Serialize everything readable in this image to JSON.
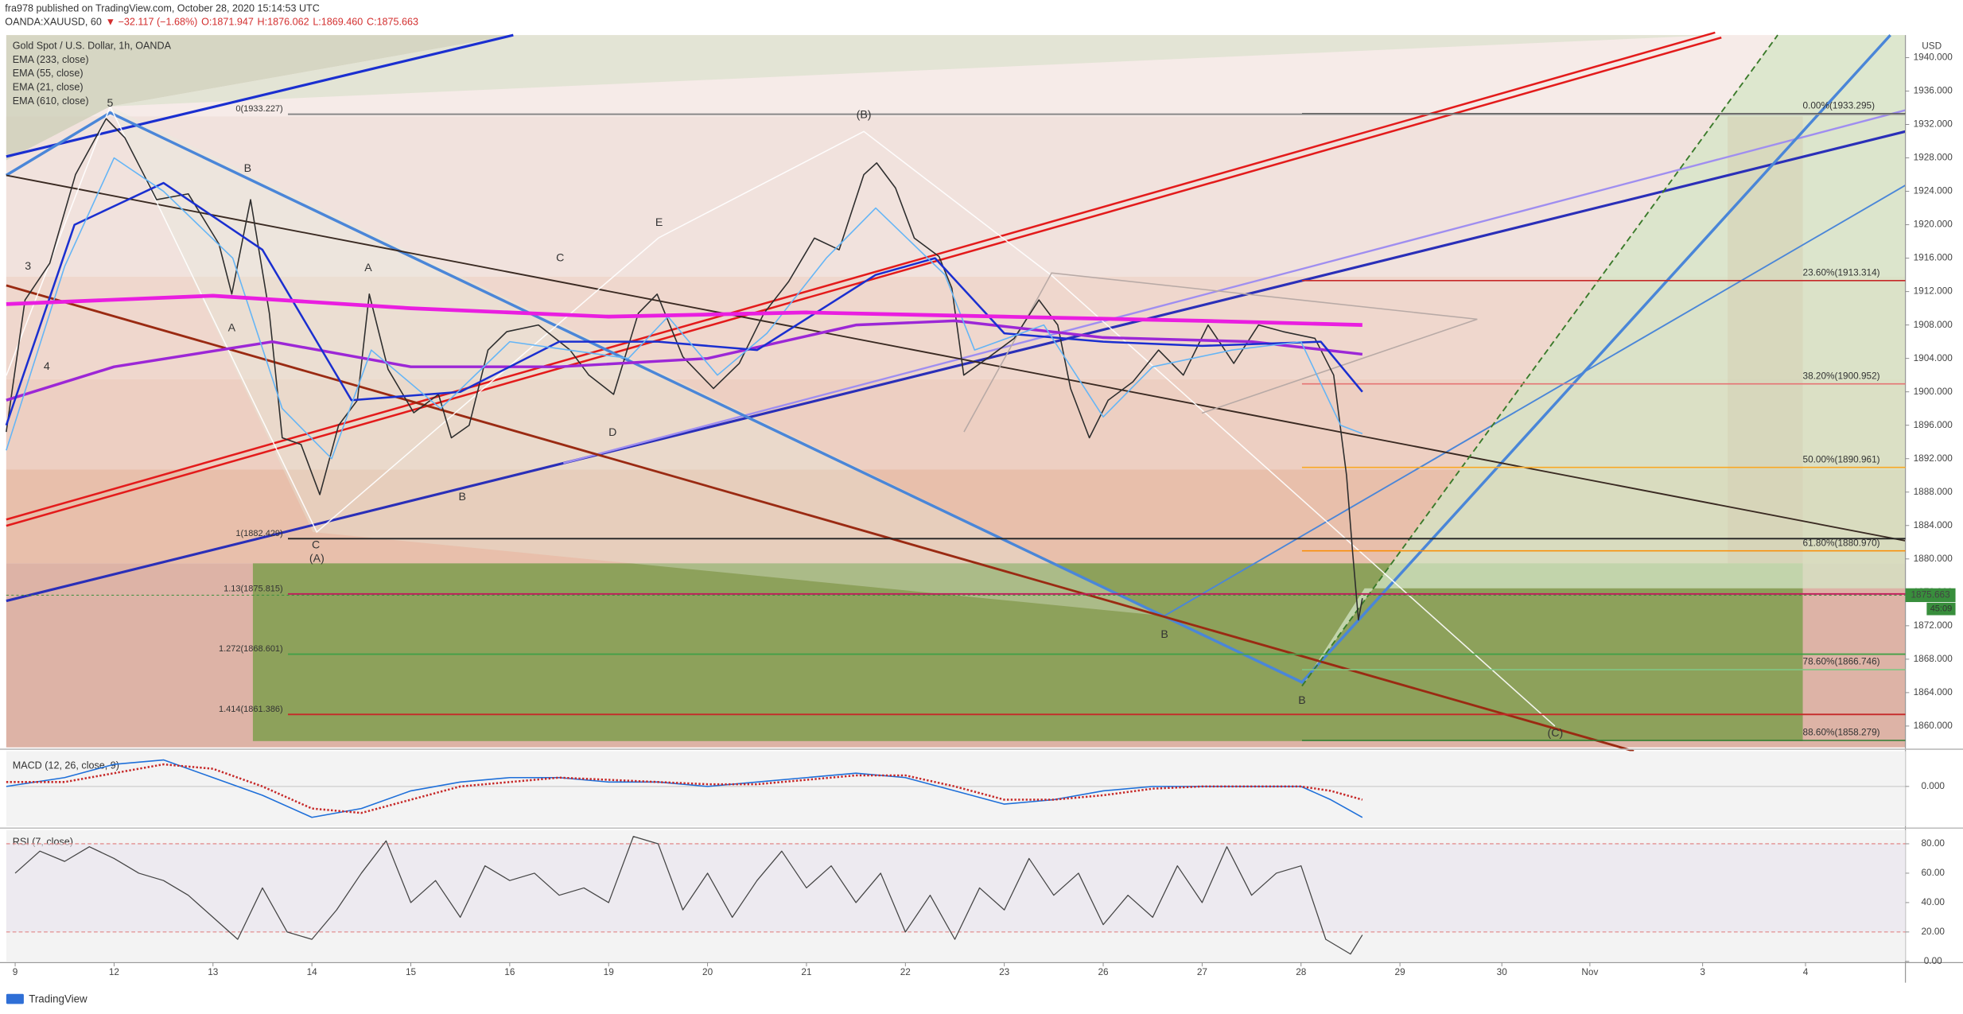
{
  "header": {
    "publisher": "fra978 published on TradingView.com, October 28, 2020 15:14:53 UTC",
    "symbol": "OANDA:XAUUSD, 60",
    "change": "▼ −32.117 (−1.68%)",
    "open": "O:1871.947",
    "high": "H:1876.062",
    "low": "L:1869.460",
    "close": "C:1875.663"
  },
  "footer": {
    "brand": "TradingView"
  },
  "chart_data": [
    {
      "type": "line",
      "title": "Gold Spot / U.S. Dollar, 1h, OANDA",
      "currency": "USD",
      "last_price": 1875.663,
      "last_price_color": "#388e3c",
      "countdown": "45:09",
      "xlim": [
        -0.09,
        19.11
      ],
      "ylim": [
        1857.45,
        1942.7
      ],
      "xticks": [
        {
          "value": 0,
          "label": "9"
        },
        {
          "value": 1,
          "label": "12"
        },
        {
          "value": 2,
          "label": "13"
        },
        {
          "value": 3,
          "label": "14"
        },
        {
          "value": 4,
          "label": "15"
        },
        {
          "value": 5,
          "label": "16"
        },
        {
          "value": 6,
          "label": "19"
        },
        {
          "value": 7,
          "label": "20"
        },
        {
          "value": 8,
          "label": "21"
        },
        {
          "value": 9,
          "label": "22"
        },
        {
          "value": 10,
          "label": "23"
        },
        {
          "value": 11,
          "label": "26"
        },
        {
          "value": 12,
          "label": "27"
        },
        {
          "value": 13,
          "label": "28"
        },
        {
          "value": 14,
          "label": "29"
        },
        {
          "value": 15.03,
          "label": "30"
        },
        {
          "value": 15.92,
          "label": "Nov"
        },
        {
          "value": 17.06,
          "label": "3"
        },
        {
          "value": 18.1,
          "label": "4"
        }
      ],
      "yticks": [
        {
          "value": 1860,
          "label": "1860.000"
        },
        {
          "value": 1864,
          "label": "1864.000"
        },
        {
          "value": 1868,
          "label": "1868.000"
        },
        {
          "value": 1872,
          "label": "1872.000"
        },
        {
          "value": 1876,
          "label": "1876.000"
        },
        {
          "value": 1880,
          "label": "1880.000"
        },
        {
          "value": 1884,
          "label": "1884.000"
        },
        {
          "value": 1888,
          "label": "1888.000"
        },
        {
          "value": 1892,
          "label": "1892.000"
        },
        {
          "value": 1896,
          "label": "1896.000"
        },
        {
          "value": 1900,
          "label": "1900.000"
        },
        {
          "value": 1904,
          "label": "1904.000"
        },
        {
          "value": 1908,
          "label": "1908.000"
        },
        {
          "value": 1912,
          "label": "1912.000"
        },
        {
          "value": 1916,
          "label": "1916.000"
        },
        {
          "value": 1920,
          "label": "1920.000"
        },
        {
          "value": 1924,
          "label": "1924.000"
        },
        {
          "value": 1928,
          "label": "1928.000"
        },
        {
          "value": 1932,
          "label": "1932.000"
        },
        {
          "value": 1936,
          "label": "1936.000"
        },
        {
          "value": 1940,
          "label": "1940.000"
        }
      ],
      "fib_retracement": [
        {
          "value": 1933.295,
          "label": "0.00%(1933.295)",
          "color": "#222222"
        },
        {
          "value": 1913.314,
          "label": "23.60%(1913.314)",
          "color": "#c62828"
        },
        {
          "value": 1900.952,
          "label": "38.20%(1900.952)",
          "color": "#e57373"
        },
        {
          "value": 1890.961,
          "label": "50.00%(1890.961)",
          "color": "#f9a825"
        },
        {
          "value": 1880.97,
          "label": "61.80%(1880.970)",
          "color": "#fb8c00"
        },
        {
          "value": 1866.746,
          "label": "78.60%(1866.746)",
          "color": "#81c784"
        },
        {
          "value": 1858.279,
          "label": "88.60%(1858.279)",
          "color": "#2e7d32"
        }
      ],
      "fib_extension": [
        {
          "value": 1933.227,
          "label": "0(1933.227)",
          "color": "#888888"
        },
        {
          "value": 1882.429,
          "label": "1(1882.429)",
          "color": "#222222"
        },
        {
          "value": 1875.815,
          "label": "1.13(1875.815)",
          "color": "#c2185b"
        },
        {
          "value": 1868.601,
          "label": "1.272(1868.601)",
          "color": "#43a047"
        },
        {
          "value": 1861.386,
          "label": "1.414(1861.386)",
          "color": "#c62828"
        }
      ],
      "annotations": [
        {
          "text": "3",
          "x": 0.13,
          "y": 1915.0
        },
        {
          "text": "4",
          "x": 0.32,
          "y": 1903.0
        },
        {
          "text": "5",
          "x": 0.96,
          "y": 1934.5
        },
        {
          "text": "B",
          "x": 2.35,
          "y": 1926.7
        },
        {
          "text": "A",
          "x": 2.19,
          "y": 1907.6
        },
        {
          "text": "C",
          "x": 3.04,
          "y": 1881.6
        },
        {
          "text": "(A)",
          "x": 3.05,
          "y": 1880.0
        },
        {
          "text": "A",
          "x": 3.57,
          "y": 1914.8
        },
        {
          "text": "B",
          "x": 4.52,
          "y": 1887.4
        },
        {
          "text": "C",
          "x": 5.51,
          "y": 1916.0
        },
        {
          "text": "E",
          "x": 6.51,
          "y": 1920.2
        },
        {
          "text": "D",
          "x": 6.04,
          "y": 1895.1
        },
        {
          "text": "(B)",
          "x": 8.58,
          "y": 1933.1
        },
        {
          "text": "B",
          "x": 11.62,
          "y": 1870.9
        },
        {
          "text": "B",
          "x": 13.01,
          "y": 1863.0
        },
        {
          "text": "(C)",
          "x": 15.57,
          "y": 1859.1
        }
      ],
      "series": [
        {
          "color": "#2d2d2d",
          "width": 1,
          "x": [
            -0.09,
            0.1,
            0.35,
            0.61,
            0.92,
            1.11,
            1.43,
            1.75,
            2.06,
            2.19,
            2.38,
            2.57,
            2.7,
            2.89,
            3.08,
            3.27,
            3.46,
            3.58,
            3.77,
            4.03,
            4.28,
            4.41,
            4.59,
            4.78,
            4.97,
            5.29,
            5.61,
            5.8,
            6.05,
            6.3,
            6.49,
            6.75,
            7.06,
            7.32,
            7.57,
            7.82,
            8.08,
            8.33,
            8.58,
            8.71,
            8.9,
            9.09,
            9.34,
            9.47,
            9.59,
            9.85,
            10.1,
            10.35,
            10.54,
            10.67,
            10.86,
            11.05,
            11.3,
            11.56,
            11.81,
            12.06,
            12.32,
            12.57,
            12.82,
            13.14,
            13.33,
            13.46,
            13.52,
            13.58,
            13.62
          ],
          "values": [
            1895.2,
            1911,
            1915.4,
            1926,
            1932.7,
            1930.4,
            1923,
            1923.7,
            1917.7,
            1911.7,
            1923,
            1909.4,
            1894.5,
            1893.7,
            1887.7,
            1896,
            1899,
            1911.7,
            1902.7,
            1897.5,
            1899.7,
            1894.5,
            1896,
            1905,
            1907.2,
            1908,
            1905,
            1902,
            1899.7,
            1909.4,
            1911.7,
            1904.2,
            1900.4,
            1903.4,
            1909.4,
            1913.2,
            1918.4,
            1917,
            1926,
            1927.4,
            1924.4,
            1918.4,
            1916.2,
            1912.4,
            1902,
            1904.2,
            1906.4,
            1911,
            1908,
            1900.4,
            1894.5,
            1899,
            1901.2,
            1905,
            1902,
            1908,
            1903.4,
            1908,
            1907.2,
            1906.4,
            1902,
            1890,
            1881,
            1872.7,
            1875.3
          ]
        },
        {
          "name": "EMA (233, close)",
          "color": "#9c27d6",
          "width": 2.2,
          "x": [
            -0.09,
            1,
            2.6,
            4,
            5.5,
            7,
            8.5,
            9.5,
            11,
            12.5,
            13.62
          ],
          "values": [
            1899,
            1903,
            1906,
            1903,
            1903,
            1904,
            1908,
            1908.5,
            1906.5,
            1906,
            1904.5
          ]
        },
        {
          "name": "EMA (55, close)",
          "color": "#1a2fd0",
          "width": 1.6,
          "x": [
            -0.09,
            0.6,
            1.5,
            2.5,
            3.4,
            4.5,
            5.5,
            6.5,
            7.5,
            8.7,
            9.3,
            10,
            11,
            12,
            13.2,
            13.62
          ],
          "values": [
            1896,
            1920,
            1925,
            1917,
            1899,
            1900,
            1906,
            1906,
            1905,
            1914,
            1916,
            1907,
            1906,
            1905.5,
            1906,
            1900
          ]
        },
        {
          "name": "EMA (21, close)",
          "color": "#64b5f6",
          "width": 1,
          "x": [
            -0.09,
            0.5,
            1,
            1.5,
            2.2,
            2.7,
            3.2,
            3.6,
            4.3,
            5,
            5.6,
            6.2,
            6.6,
            7.1,
            7.6,
            8.2,
            8.7,
            9.4,
            9.7,
            10.4,
            11,
            11.5,
            12.3,
            13,
            13.4,
            13.62
          ],
          "values": [
            1893,
            1915,
            1928,
            1924,
            1916,
            1898,
            1892,
            1905,
            1898,
            1906,
            1905,
            1904,
            1909,
            1902,
            1907,
            1916,
            1922,
            1914,
            1905,
            1908,
            1897,
            1903,
            1905,
            1906,
            1896,
            1895
          ]
        },
        {
          "name": "EMA (610, close)",
          "color": "#e91ee0",
          "width": 3,
          "x": [
            -0.09,
            2,
            4,
            6,
            8,
            10,
            12,
            13.62
          ],
          "values": [
            1910.5,
            1911.5,
            1910,
            1909,
            1909.5,
            1909,
            1908.5,
            1908
          ]
        }
      ]
    },
    {
      "type": "line",
      "title": "MACD (12, 26, close, 9)",
      "xlim": [
        -0.09,
        19.11
      ],
      "ylim": [
        -9,
        8
      ],
      "yticks": [
        {
          "value": 0,
          "label": "0.000"
        }
      ],
      "series": [
        {
          "color": "#1e6fd9",
          "width": 1,
          "x": [
            -0.09,
            0.5,
            1,
            1.5,
            2,
            2.5,
            3,
            3.5,
            4,
            4.5,
            5,
            5.5,
            6,
            6.5,
            7,
            7.5,
            8,
            8.5,
            9,
            9.5,
            10,
            10.5,
            11,
            11.5,
            12,
            12.5,
            13,
            13.3,
            13.62
          ],
          "values": [
            0,
            2,
            5,
            6,
            2,
            -2,
            -7,
            -5,
            -1,
            1,
            2,
            2,
            1,
            1,
            0,
            1,
            2,
            3,
            2,
            -1,
            -4,
            -3,
            -1,
            0,
            0,
            0,
            0,
            -3,
            -7
          ]
        },
        {
          "color": "#c62828",
          "width": 1.6,
          "dotted": true,
          "x": [
            -0.09,
            0.5,
            1,
            1.5,
            2,
            2.5,
            3,
            3.5,
            4,
            4.5,
            5,
            5.5,
            6,
            6.5,
            7,
            7.5,
            8,
            8.5,
            9,
            9.5,
            10,
            10.5,
            11,
            11.5,
            12,
            12.5,
            13,
            13.3,
            13.62
          ],
          "values": [
            1,
            1,
            3,
            5,
            4,
            0,
            -5,
            -6,
            -3,
            0,
            1,
            2,
            1.5,
            1,
            0.5,
            0.5,
            1.5,
            2.5,
            2.5,
            0,
            -3,
            -3,
            -2,
            -0.5,
            0,
            0,
            0,
            -1,
            -3
          ]
        }
      ]
    },
    {
      "type": "line",
      "title": "RSI (7, close)",
      "xlim": [
        -0.09,
        19.11
      ],
      "ylim": [
        0,
        89.4
      ],
      "band": [
        20,
        80
      ],
      "yticks": [
        {
          "value": 0,
          "label": "0.00"
        },
        {
          "value": 20,
          "label": "20.00"
        },
        {
          "value": 40,
          "label": "40.00"
        },
        {
          "value": 60,
          "label": "60.00"
        },
        {
          "value": 80,
          "label": "80.00"
        }
      ],
      "series": [
        {
          "color": "#444444",
          "width": 0.8,
          "x": [
            0,
            0.25,
            0.5,
            0.75,
            1,
            1.25,
            1.5,
            1.75,
            2,
            2.25,
            2.5,
            2.75,
            3,
            3.25,
            3.5,
            3.75,
            4,
            4.25,
            4.5,
            4.75,
            5,
            5.25,
            5.5,
            5.75,
            6,
            6.25,
            6.5,
            6.75,
            7,
            7.25,
            7.5,
            7.75,
            8,
            8.25,
            8.5,
            8.75,
            9,
            9.25,
            9.5,
            9.75,
            10,
            10.25,
            10.5,
            10.75,
            11,
            11.25,
            11.5,
            11.75,
            12,
            12.25,
            12.5,
            12.75,
            13,
            13.25,
            13.5,
            13.62
          ],
          "values": [
            60,
            75,
            68,
            78,
            70,
            60,
            55,
            45,
            30,
            15,
            50,
            20,
            15,
            35,
            60,
            82,
            40,
            55,
            30,
            65,
            55,
            60,
            45,
            50,
            40,
            85,
            80,
            35,
            60,
            30,
            55,
            75,
            50,
            65,
            40,
            60,
            20,
            45,
            15,
            50,
            35,
            70,
            45,
            60,
            25,
            45,
            30,
            65,
            40,
            78,
            45,
            60,
            65,
            15,
            5,
            18
          ]
        }
      ]
    }
  ]
}
